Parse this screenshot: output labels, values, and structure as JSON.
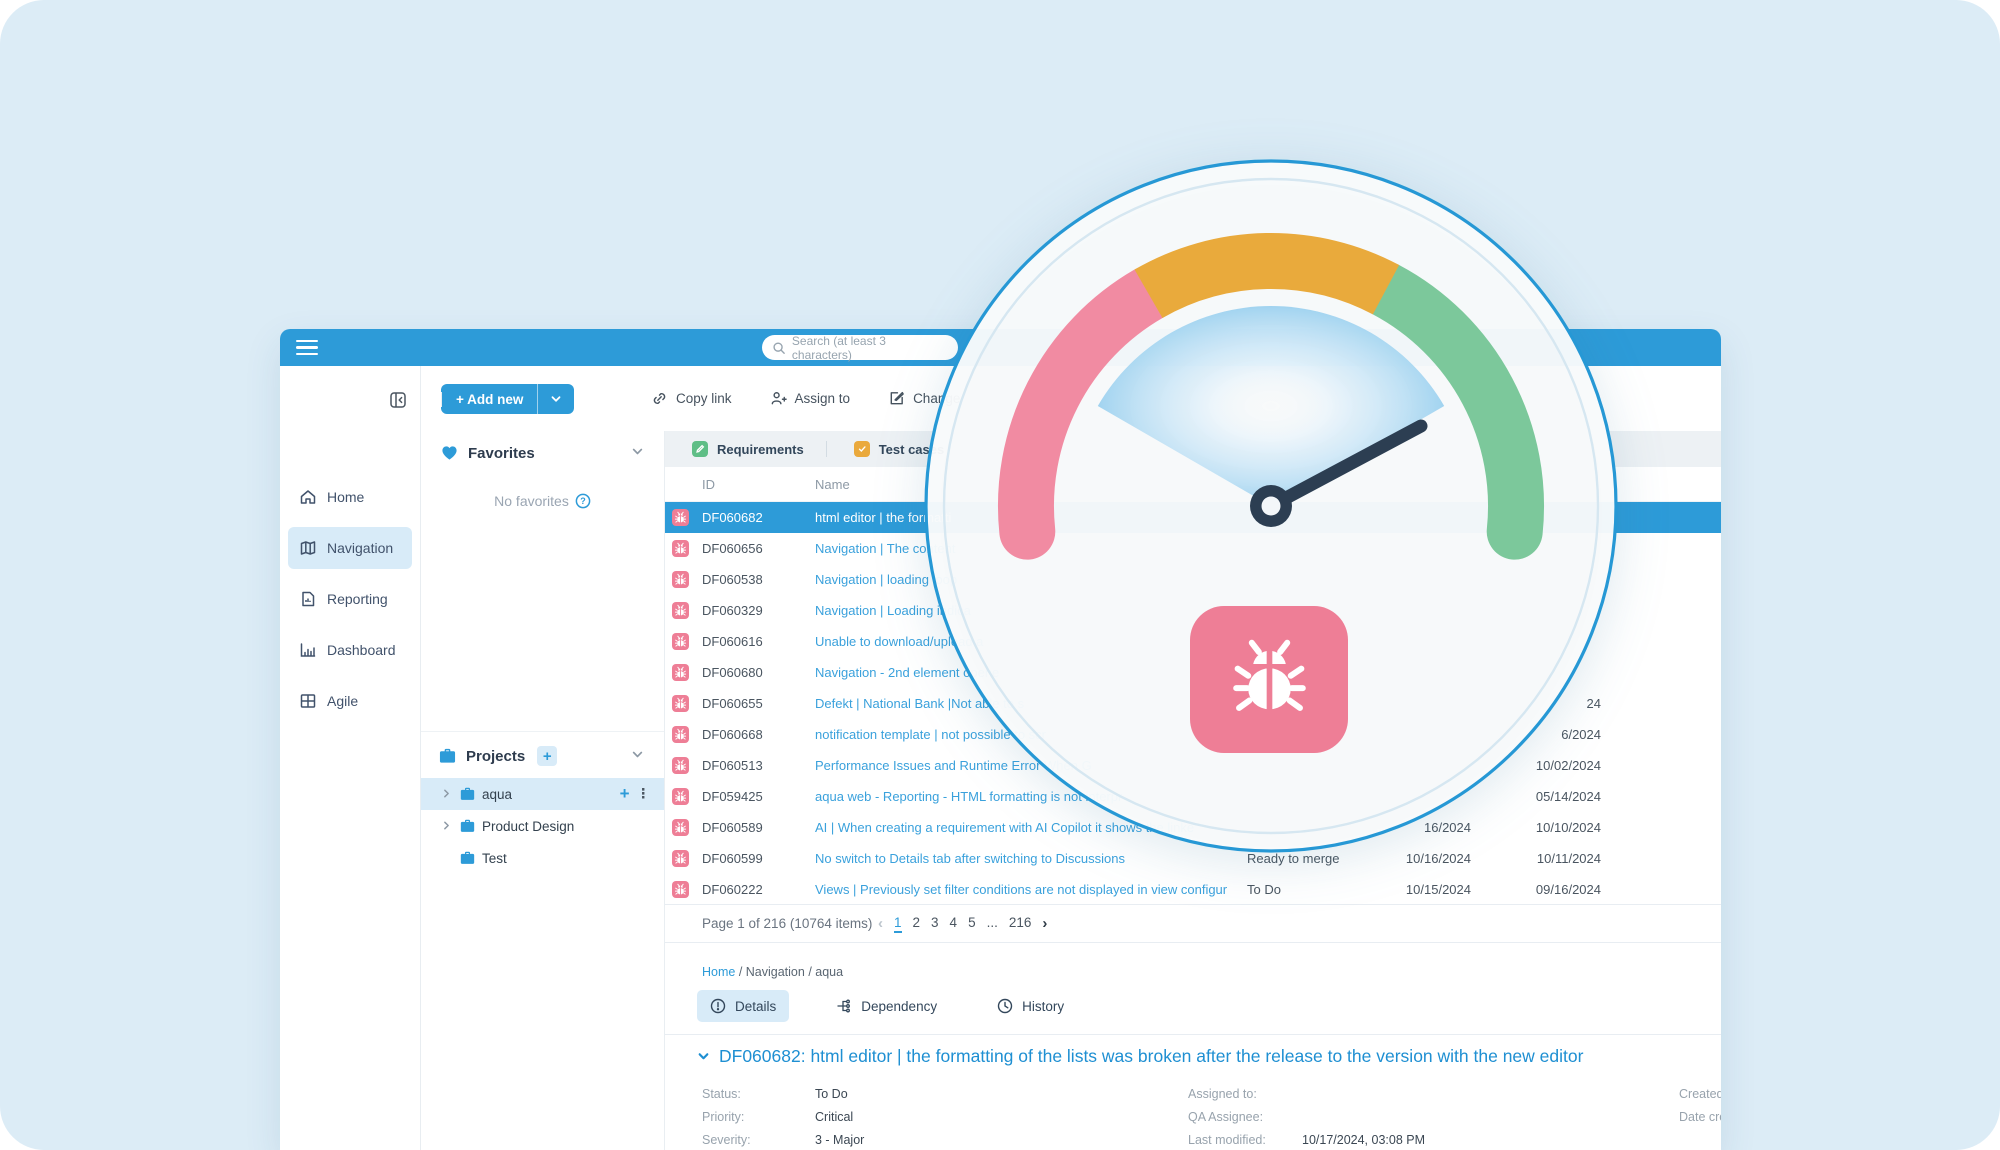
{
  "topbar": {
    "search_placeholder": "Search (at least 3 characters)"
  },
  "sidebar": {
    "items": [
      {
        "label": "Home"
      },
      {
        "label": "Navigation",
        "active": true
      },
      {
        "label": "Reporting"
      },
      {
        "label": "Dashboard"
      },
      {
        "label": "Agile"
      }
    ]
  },
  "toolbar": {
    "add_new_label": "+ Add new",
    "actions": [
      {
        "label": "Copy link"
      },
      {
        "label": "Assign to"
      },
      {
        "label": "Change"
      }
    ]
  },
  "panel": {
    "favorites": {
      "title": "Favorites",
      "empty_text": "No favorites"
    },
    "projects": {
      "title": "Projects",
      "items": [
        {
          "label": "aqua",
          "active": true
        },
        {
          "label": "Product Design"
        },
        {
          "label": "Test"
        }
      ]
    }
  },
  "table": {
    "tabs": [
      {
        "label": "Requirements"
      },
      {
        "label": "Test cases"
      }
    ],
    "columns": {
      "id": "ID",
      "name": "Name"
    },
    "rows": [
      {
        "id": "DF060682",
        "name": "html editor | the formatti",
        "selected": true
      },
      {
        "id": "DF060656",
        "name": "Navigation | The content"
      },
      {
        "id": "DF060538",
        "name": "Navigation | loading loop"
      },
      {
        "id": "DF060329",
        "name": "Navigation | Loading indica"
      },
      {
        "id": "DF060616",
        "name": "Unable to download/upload a"
      },
      {
        "id": "DF060680",
        "name": "Navigation - 2nd element opene"
      },
      {
        "id": "DF060655",
        "name": "Defekt | National Bank |Not able to s",
        "date2": "24"
      },
      {
        "id": "DF060668",
        "name": "notification template | not possible to scr",
        "date2": "6/2024"
      },
      {
        "id": "DF060513",
        "name": "Performance Issues and Runtime Error When G",
        "date2": "10/02/2024"
      },
      {
        "id": "DF059425",
        "name": "aqua web - Reporting - HTML formatting is not interpr",
        "date2": "05/14/2024"
      },
      {
        "id": "DF060589",
        "name": "AI | When creating a requirement with AI Copilot it shows the linke",
        "date1": "16/2024",
        "date2": "10/10/2024"
      },
      {
        "id": "DF060599",
        "name": "No switch to Details tab after switching to Discussions",
        "status": "Ready to merge",
        "date1": "10/16/2024",
        "date2": "10/11/2024"
      },
      {
        "id": "DF060222",
        "name": "Views | Previously set filter conditions are not displayed in view configur",
        "status": "To Do",
        "date1": "10/15/2024",
        "date2": "09/16/2024"
      }
    ]
  },
  "pagination": {
    "label": "Page 1 of 216 (10764 items)",
    "pages": [
      "1",
      "2",
      "3",
      "4",
      "5",
      "...",
      "216"
    ],
    "current": "1"
  },
  "details": {
    "breadcrumb": {
      "home": "Home",
      "sep1": " / ",
      "mid": "Navigation",
      "sep2": " / ",
      "leaf": "aqua"
    },
    "tabs": [
      {
        "label": "Details",
        "active": true
      },
      {
        "label": "Dependency"
      },
      {
        "label": "History"
      }
    ],
    "title": "DF060682: html editor | the formatting of the lists was broken after the release to the version with the new editor",
    "fields_col1": [
      {
        "label": "Status:",
        "value": "To Do"
      },
      {
        "label": "Priority:",
        "value": "Critical"
      },
      {
        "label": "Severity:",
        "value": "3 - Major"
      }
    ],
    "fields_col2": [
      {
        "label": "Assigned to:",
        "value": ""
      },
      {
        "label": "QA Assignee:",
        "value": ""
      },
      {
        "label": "Last modified:",
        "value": "10/17/2024, 03:08 PM"
      }
    ],
    "fields_col3": [
      {
        "label": "Created",
        "value": ""
      },
      {
        "label": "Date cre",
        "value": ""
      }
    ]
  },
  "gauge": {
    "segment_colors": {
      "low": "#f18ba2",
      "mid": "#e9aa3c",
      "high": "#7cc89b"
    },
    "needle_color": "#2c3e52",
    "ring_color": "#2698d5",
    "badge_color": "#ee7e96",
    "badge_icon": "bug-icon"
  },
  "colors": {
    "accent": "#2d9bd8",
    "canvas": "#dcecf6",
    "selected_row": "#2d9bd8"
  }
}
